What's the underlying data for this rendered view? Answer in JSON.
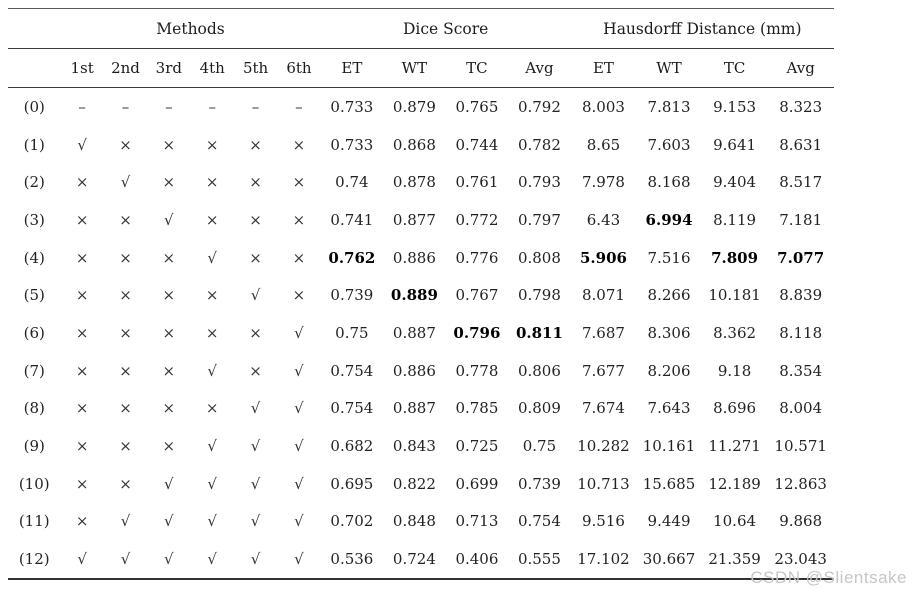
{
  "table": {
    "col_groups": [
      {
        "label": "Methods",
        "span": 6
      },
      {
        "label": "Dice Score",
        "span": 4
      },
      {
        "label": "Hausdorff Distance (mm)",
        "span": 4
      }
    ],
    "sub_headers": [
      "1st",
      "2nd",
      "3rd",
      "4th",
      "5th",
      "6th",
      "ET",
      "WT",
      "TC",
      "Avg",
      "ET",
      "WT",
      "TC",
      "Avg"
    ],
    "symbols": {
      "check": "√",
      "cross": "×",
      "dash": "–"
    },
    "rows": [
      {
        "label": "(0)",
        "values": [
          "–",
          "–",
          "–",
          "–",
          "–",
          "–",
          "0.733",
          "0.879",
          "0.765",
          "0.792",
          "8.003",
          "7.813",
          "9.153",
          "8.323"
        ],
        "bold_indices": []
      },
      {
        "label": "(1)",
        "values": [
          "√",
          "×",
          "×",
          "×",
          "×",
          "×",
          "0.733",
          "0.868",
          "0.744",
          "0.782",
          "8.65",
          "7.603",
          "9.641",
          "8.631"
        ],
        "bold_indices": []
      },
      {
        "label": "(2)",
        "values": [
          "×",
          "√",
          "×",
          "×",
          "×",
          "×",
          "0.74",
          "0.878",
          "0.761",
          "0.793",
          "7.978",
          "8.168",
          "9.404",
          "8.517"
        ],
        "bold_indices": []
      },
      {
        "label": "(3)",
        "values": [
          "×",
          "×",
          "√",
          "×",
          "×",
          "×",
          "0.741",
          "0.877",
          "0.772",
          "0.797",
          "6.43",
          "6.994",
          "8.119",
          "7.181"
        ],
        "bold_indices": [
          11
        ]
      },
      {
        "label": "(4)",
        "values": [
          "×",
          "×",
          "×",
          "√",
          "×",
          "×",
          "0.762",
          "0.886",
          "0.776",
          "0.808",
          "5.906",
          "7.516",
          "7.809",
          "7.077"
        ],
        "bold_indices": [
          6,
          10,
          12,
          13
        ]
      },
      {
        "label": "(5)",
        "values": [
          "×",
          "×",
          "×",
          "×",
          "√",
          "×",
          "0.739",
          "0.889",
          "0.767",
          "0.798",
          "8.071",
          "8.266",
          "10.181",
          "8.839"
        ],
        "bold_indices": [
          7
        ]
      },
      {
        "label": "(6)",
        "values": [
          "×",
          "×",
          "×",
          "×",
          "×",
          "√",
          "0.75",
          "0.887",
          "0.796",
          "0.811",
          "7.687",
          "8.306",
          "8.362",
          "8.118"
        ],
        "bold_indices": [
          8,
          9
        ]
      },
      {
        "label": "(7)",
        "values": [
          "×",
          "×",
          "×",
          "√",
          "×",
          "√",
          "0.754",
          "0.886",
          "0.778",
          "0.806",
          "7.677",
          "8.206",
          "9.18",
          "8.354"
        ],
        "bold_indices": []
      },
      {
        "label": "(8)",
        "values": [
          "×",
          "×",
          "×",
          "×",
          "√",
          "√",
          "0.754",
          "0.887",
          "0.785",
          "0.809",
          "7.674",
          "7.643",
          "8.696",
          "8.004"
        ],
        "bold_indices": []
      },
      {
        "label": "(9)",
        "values": [
          "×",
          "×",
          "×",
          "√",
          "√",
          "√",
          "0.682",
          "0.843",
          "0.725",
          "0.75",
          "10.282",
          "10.161",
          "11.271",
          "10.571"
        ],
        "bold_indices": []
      },
      {
        "label": "(10)",
        "values": [
          "×",
          "×",
          "√",
          "√",
          "√",
          "√",
          "0.695",
          "0.822",
          "0.699",
          "0.739",
          "10.713",
          "15.685",
          "12.189",
          "12.863"
        ],
        "bold_indices": []
      },
      {
        "label": "(11)",
        "values": [
          "×",
          "√",
          "√",
          "√",
          "√",
          "√",
          "0.702",
          "0.848",
          "0.713",
          "0.754",
          "9.516",
          "9.449",
          "10.64",
          "9.868"
        ],
        "bold_indices": []
      },
      {
        "label": "(12)",
        "values": [
          "√",
          "√",
          "√",
          "√",
          "√",
          "√",
          "0.536",
          "0.724",
          "0.406",
          "0.555",
          "17.102",
          "30.667",
          "21.359",
          "23.043"
        ],
        "bold_indices": []
      }
    ]
  },
  "watermark": {
    "text": "CSDN @Slientsake"
  }
}
